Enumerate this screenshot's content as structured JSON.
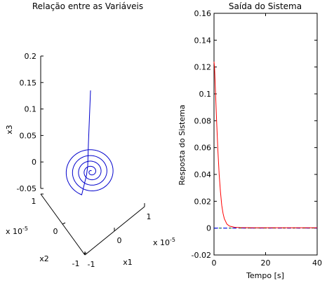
{
  "chart_data": [
    {
      "type": "line",
      "projection": "3d",
      "title": "Relação entre as Variáveis",
      "xlabel": "x1",
      "ylabel": "x2",
      "zlabel": "x3",
      "x_scale_label": "x 10",
      "x_scale_exp": "-5",
      "y_scale_label": "x 10",
      "y_scale_exp": "-5",
      "x_ticks": [
        "-1",
        "0",
        "1"
      ],
      "y_ticks": [
        "-1",
        "0",
        "1"
      ],
      "z_ticks": [
        "-0.05",
        "0",
        "0.05",
        "0.1",
        "0.15",
        "0.2"
      ],
      "zlim": [
        -0.05,
        0.2
      ],
      "series": [
        {
          "color": "#0000cc",
          "description": "Spiral converging to origin after initial drop in x3",
          "z_start": 0.135,
          "z_end": 0.0,
          "turns": 4.5
        }
      ]
    },
    {
      "type": "line",
      "title": "Saída do Sistema",
      "xlabel": "Tempo [s]",
      "ylabel": "Resposta do Sistema",
      "xlim": [
        0,
        40
      ],
      "ylim": [
        -0.02,
        0.16
      ],
      "x_ticks": [
        "0",
        "20",
        "40"
      ],
      "y_ticks": [
        "-0.02",
        "0",
        "0.02",
        "0.04",
        "0.06",
        "0.08",
        "0.1",
        "0.12",
        "0.14",
        "0.16"
      ],
      "series": [
        {
          "color": "#ff0000",
          "style": "solid",
          "x": [
            0,
            0.2,
            0.5,
            1,
            1.5,
            2,
            2.5,
            3,
            3.5,
            4,
            5,
            6,
            8,
            10,
            15,
            20,
            30,
            40
          ],
          "y": [
            0.124,
            0.12,
            0.105,
            0.08,
            0.058,
            0.04,
            0.027,
            0.017,
            0.011,
            0.007,
            0.003,
            0.0015,
            0.0006,
            0.0004,
            0.0003,
            0.0003,
            0.0003,
            0.0003
          ]
        },
        {
          "color": "#008000",
          "style": "dashed",
          "x": [
            0,
            40
          ],
          "y": [
            0,
            0
          ]
        },
        {
          "color": "#0000ff",
          "style": "dashdot",
          "x": [
            0,
            40
          ],
          "y": [
            0,
            0
          ]
        }
      ]
    }
  ]
}
